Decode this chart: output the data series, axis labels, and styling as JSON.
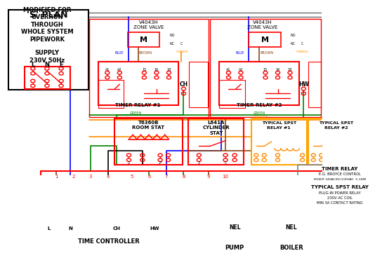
{
  "bg_color": "#ffffff",
  "wire_colors": {
    "blue": "#0000ff",
    "green": "#008000",
    "brown": "#8B4513",
    "orange": "#ff8c00",
    "grey": "#808080",
    "black": "#000000",
    "red": "#ff0000",
    "pink": "#ff9999"
  },
  "title": "'S' PLAN",
  "subtitle": "MODIFIED FOR\nOVERRUN\nTHROUGH\nWHOLE SYSTEM\nPIPEWORK",
  "supply": "SUPPLY\n230V 50Hz",
  "lne": [
    "L",
    "N",
    "E"
  ],
  "terminals": [
    "1",
    "2",
    "3",
    "4",
    "5",
    "6",
    "7",
    "8",
    "9",
    "10"
  ],
  "tc_labels": [
    "L",
    "N",
    "CH",
    "HW"
  ],
  "legend_lines": [
    "TIMER RELAY",
    "E.G. BROYCE CONTROL",
    "M1EDF 24VAC/DC/230VAC  5-10MI",
    "",
    "TYPICAL SPST RELAY",
    "PLUG-IN POWER RELAY",
    "230V AC COIL",
    "MIN 3A CONTACT RATING"
  ]
}
